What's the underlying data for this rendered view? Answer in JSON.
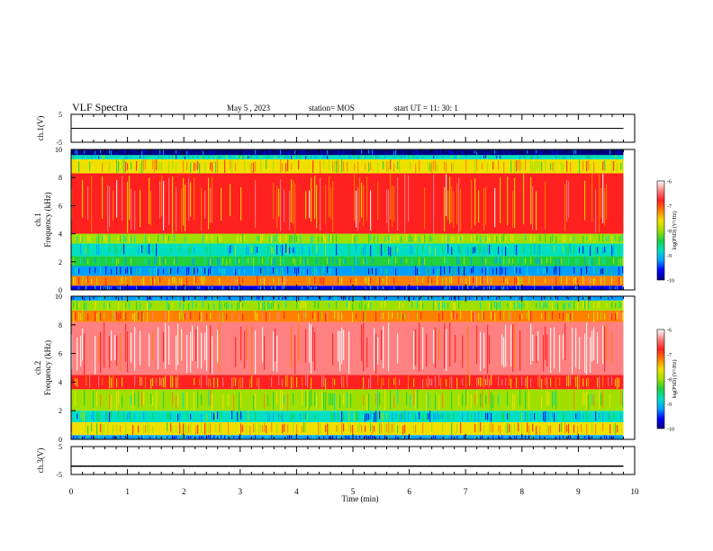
{
  "header": {
    "title": "VLF Spectra",
    "date": "May 5 , 2023",
    "station": "station= MOS",
    "start": "start UT = 11: 30: 1"
  },
  "colors": {
    "colormap": [
      "#000080",
      "#0000ff",
      "#00a0ff",
      "#00e0c0",
      "#20d040",
      "#a0e000",
      "#f0e000",
      "#ff8000",
      "#ff2020",
      "#ff8080",
      "#ffffff"
    ]
  },
  "chart_data": [
    {
      "type": "line",
      "name": "ch1-voltage",
      "ylabel": "ch.1(V)",
      "ylim": [
        -5,
        5
      ],
      "yticks": [
        "-5",
        "5"
      ],
      "xlim": [
        0,
        10
      ],
      "x": [
        0,
        9.8
      ],
      "y": [
        0,
        0
      ]
    },
    {
      "type": "heatmap",
      "name": "ch1-spectrogram",
      "ylabel": "ch.1\nFrequency (kHz)",
      "ylim": [
        0,
        10
      ],
      "yticks": [
        "0",
        "2",
        "4",
        "6",
        "8",
        "10"
      ],
      "xlim": [
        0,
        10
      ],
      "data_end_min": 9.8,
      "bands_khz": [
        [
          0,
          0.3,
          -9.5
        ],
        [
          0.3,
          1.0,
          -7.3
        ],
        [
          1.0,
          1.7,
          -9.2
        ],
        [
          1.7,
          2.4,
          -8.6
        ],
        [
          2.4,
          3.3,
          -8.9
        ],
        [
          3.3,
          4.0,
          -8.2
        ],
        [
          4.0,
          8.3,
          -6.9
        ],
        [
          8.3,
          9.3,
          -7.6
        ],
        [
          9.3,
          9.6,
          -8.8
        ],
        [
          9.6,
          10,
          -9.9
        ]
      ],
      "colorbar": {
        "label": "log(PSD) (V²/Hz)",
        "ticks": [
          "-6",
          "-7",
          "-8",
          "-9",
          "-10"
        ],
        "range": [
          -10,
          -6
        ]
      }
    },
    {
      "type": "heatmap",
      "name": "ch2-spectrogram",
      "ylabel": "ch.2\nFrequency (kHz)",
      "ylim": [
        0,
        10
      ],
      "yticks": [
        "0",
        "2",
        "4",
        "6",
        "8",
        "10"
      ],
      "xlim": [
        0,
        10
      ],
      "data_end_min": 9.8,
      "bands_khz": [
        [
          0,
          0.3,
          -9.3
        ],
        [
          0.3,
          1.2,
          -7.5
        ],
        [
          1.2,
          2.0,
          -8.9
        ],
        [
          2.0,
          3.5,
          -8.0
        ],
        [
          3.5,
          4.5,
          -7.0
        ],
        [
          4.5,
          8.2,
          -6.3
        ],
        [
          8.2,
          9.0,
          -7.2
        ],
        [
          9.0,
          9.7,
          -8.2
        ],
        [
          9.7,
          10,
          -9.2
        ]
      ],
      "colorbar": {
        "label": "log(PSD) (V²/Hz)",
        "ticks": [
          "-6",
          "-7",
          "-8",
          "-9",
          "-10"
        ],
        "range": [
          -10,
          -6
        ]
      }
    },
    {
      "type": "line",
      "name": "ch3-voltage",
      "ylabel": "ch.3(V)",
      "ylim": [
        -5,
        5
      ],
      "yticks": [
        "-5",
        "5"
      ],
      "xlim": [
        0,
        10
      ],
      "x": [
        0,
        9.8
      ],
      "y": [
        -2,
        -2
      ]
    }
  ],
  "xaxis": {
    "label": "Time (min)",
    "ticks": [
      "0",
      "1",
      "2",
      "3",
      "4",
      "5",
      "6",
      "7",
      "8",
      "9",
      "10"
    ]
  }
}
